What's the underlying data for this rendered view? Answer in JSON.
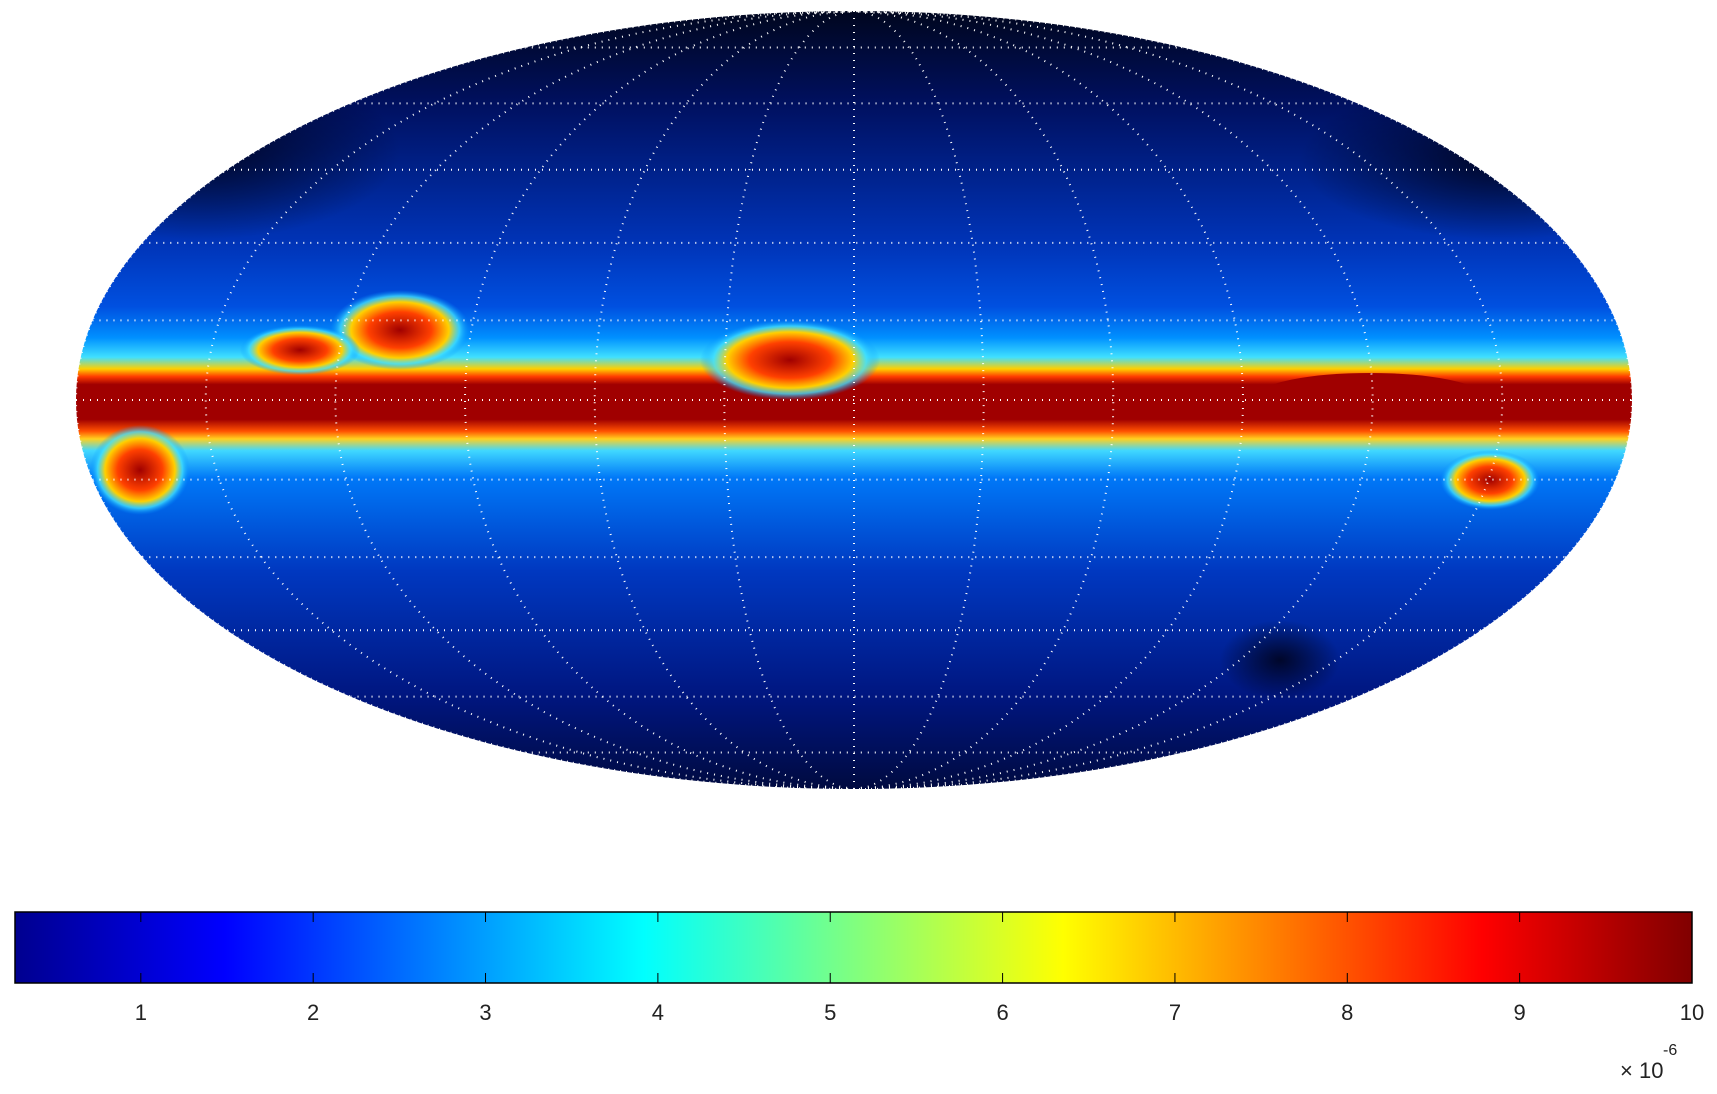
{
  "chart_data": {
    "type": "skymap",
    "projection": "mollweide",
    "graticule": true,
    "colorbar": {
      "colormap": "jet",
      "clim": [
        0.27,
        10
      ],
      "ticks": [
        1,
        2,
        3,
        4,
        5,
        6,
        7,
        8,
        9,
        10
      ],
      "multiplier": {
        "base": "× 10",
        "exponent": "-6"
      }
    }
  }
}
